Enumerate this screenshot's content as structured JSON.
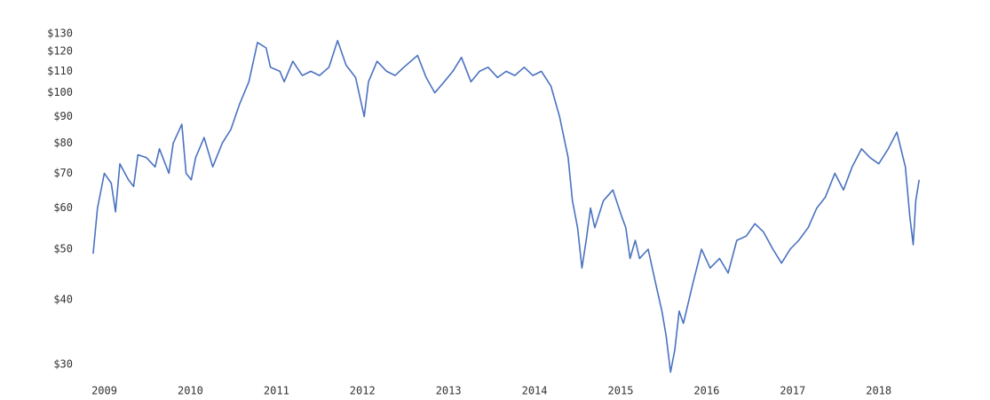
{
  "chart_data": {
    "type": "line",
    "log_y": true,
    "grid": false,
    "xlim": [
      2008.85,
      2018.55
    ],
    "xticks": [
      2009,
      2010,
      2011,
      2012,
      2013,
      2014,
      2015,
      2016,
      2017,
      2018
    ],
    "ylim": [
      28,
      132
    ],
    "yticks": [
      {
        "value": 30,
        "label": "$30"
      },
      {
        "value": 40,
        "label": "$40"
      },
      {
        "value": 50,
        "label": "$50"
      },
      {
        "value": 60,
        "label": "$60"
      },
      {
        "value": 70,
        "label": "$70"
      },
      {
        "value": 80,
        "label": "$80"
      },
      {
        "value": 90,
        "label": "$90"
      },
      {
        "value": 100,
        "label": "$100"
      },
      {
        "value": 110,
        "label": "$110"
      },
      {
        "value": 120,
        "label": "$120"
      },
      {
        "value": 130,
        "label": "$130"
      }
    ],
    "x": [
      2008.87,
      2008.92,
      2009.0,
      2009.08,
      2009.13,
      2009.18,
      2009.28,
      2009.34,
      2009.39,
      2009.49,
      2009.59,
      2009.64,
      2009.75,
      2009.8,
      2009.9,
      2009.95,
      2010.01,
      2010.06,
      2010.16,
      2010.26,
      2010.37,
      2010.47,
      2010.57,
      2010.68,
      2010.78,
      2010.88,
      2010.93,
      2011.04,
      2011.09,
      2011.19,
      2011.3,
      2011.4,
      2011.5,
      2011.61,
      2011.71,
      2011.81,
      2011.92,
      2012.02,
      2012.07,
      2012.17,
      2012.28,
      2012.38,
      2012.48,
      2012.64,
      2012.74,
      2012.84,
      2012.95,
      2013.05,
      2013.15,
      2013.26,
      2013.36,
      2013.46,
      2013.57,
      2013.67,
      2013.77,
      2013.88,
      2013.98,
      2014.08,
      2014.19,
      2014.29,
      2014.39,
      2014.44,
      2014.5,
      2014.55,
      2014.6,
      2014.65,
      2014.7,
      2014.8,
      2014.91,
      2015.01,
      2015.06,
      2015.11,
      2015.17,
      2015.22,
      2015.32,
      2015.42,
      2015.48,
      2015.53,
      2015.58,
      2015.63,
      2015.68,
      2015.73,
      2015.84,
      2015.94,
      2016.04,
      2016.15,
      2016.25,
      2016.35,
      2016.46,
      2016.56,
      2016.66,
      2016.77,
      2016.87,
      2016.97,
      2017.07,
      2017.18,
      2017.28,
      2017.38,
      2017.49,
      2017.59,
      2017.69,
      2017.8,
      2017.9,
      2018.0,
      2018.11,
      2018.21,
      2018.31,
      2018.36,
      2018.4,
      2018.43,
      2018.47
    ],
    "series": [
      {
        "color": "#4a72c0",
        "values": [
          49,
          60,
          70,
          67,
          59,
          73,
          68,
          66,
          76,
          75,
          72,
          78,
          70,
          80,
          87,
          70,
          68,
          75,
          82,
          72,
          80,
          85,
          95,
          105,
          125,
          122,
          112,
          110,
          105,
          115,
          108,
          110,
          108,
          112,
          126,
          113,
          107,
          90,
          105,
          115,
          110,
          108,
          112,
          118,
          107,
          100,
          105,
          110,
          117,
          105,
          110,
          112,
          107,
          110,
          108,
          112,
          108,
          110,
          103,
          90,
          75,
          62,
          55,
          46,
          52,
          60,
          55,
          62,
          65,
          58,
          55,
          48,
          52,
          48,
          50,
          42,
          38,
          34,
          29,
          32,
          38,
          36,
          43,
          50,
          46,
          48,
          45,
          52,
          53,
          56,
          54,
          50,
          47,
          50,
          52,
          55,
          60,
          63,
          70,
          65,
          72,
          78,
          75,
          73,
          78,
          84,
          72,
          58,
          51,
          62,
          68
        ]
      }
    ]
  }
}
